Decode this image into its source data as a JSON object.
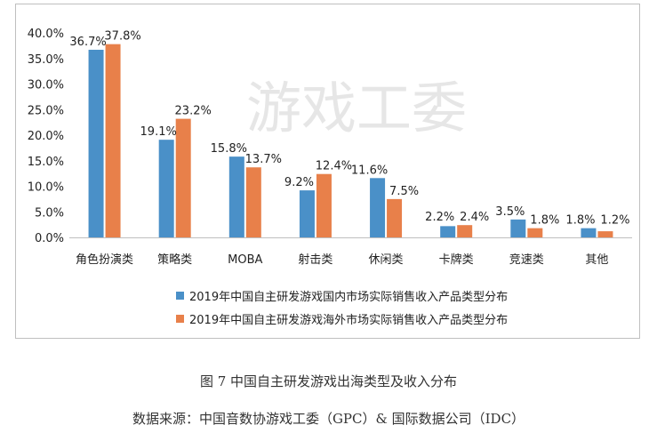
{
  "chart_data": {
    "type": "bar",
    "categories": [
      "角色扮演类",
      "策略类",
      "MOBA",
      "射击类",
      "休闲类",
      "卡牌类",
      "竞速类",
      "其他"
    ],
    "series": [
      {
        "name": "2019年中国自主研发游戏国内市场实际销售收入产品类型分布",
        "color": "#4A90C8",
        "values": [
          36.7,
          19.1,
          15.8,
          9.2,
          11.6,
          2.2,
          3.5,
          1.8
        ],
        "labels": [
          "36.7%",
          "19.1%",
          "15.8%",
          "9.2%",
          "11.6%",
          "2.2%",
          "3.5%",
          "1.8%"
        ]
      },
      {
        "name": "2019年中国自主研发游戏海外市场实际销售收入产品类型分布",
        "color": "#E8804A",
        "values": [
          37.8,
          23.2,
          13.7,
          12.4,
          7.5,
          2.4,
          1.8,
          1.2
        ],
        "labels": [
          "37.8%",
          "23.2%",
          "13.7%",
          "12.4%",
          "7.5%",
          "2.4%",
          "1.8%",
          "1.2%"
        ]
      }
    ],
    "y_ticks": [
      "0.0%",
      "5.0%",
      "10.0%",
      "15.0%",
      "20.0%",
      "25.0%",
      "30.0%",
      "35.0%",
      "40.0%"
    ],
    "ylim": [
      0,
      40
    ],
    "gridlines": false,
    "legend_position": "bottom"
  },
  "watermark": "游戏工委",
  "caption": "图 7 中国自主研发游戏出海类型及收入分布",
  "source": "数据来源：中国音数协游戏工委（GPC）& 国际数据公司（IDC）"
}
